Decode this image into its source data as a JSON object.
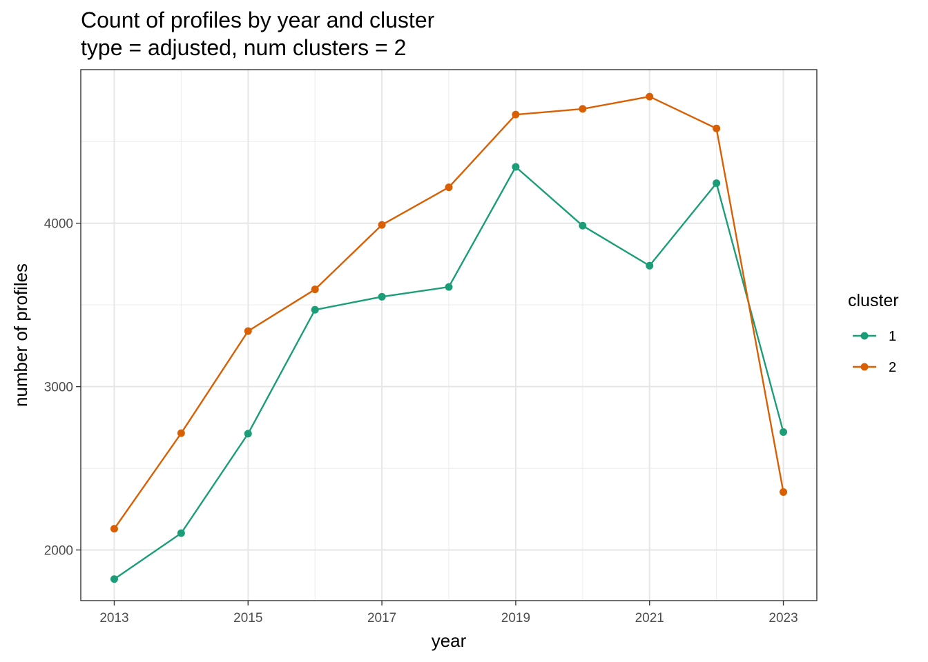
{
  "chart_data": {
    "type": "line",
    "title": "Count of profiles by year and cluster",
    "subtitle": "type = adjusted, num clusters = 2",
    "xlabel": "year",
    "ylabel": "number of profiles",
    "x": [
      2013,
      2014,
      2015,
      2016,
      2017,
      2018,
      2019,
      2020,
      2021,
      2022,
      2023
    ],
    "x_ticks": [
      "2013",
      "2015",
      "2017",
      "2019",
      "2021",
      "2023"
    ],
    "y_ticks": [
      "2000",
      "3000",
      "4000"
    ],
    "xlim": [
      2012.5,
      2023.5
    ],
    "ylim": [
      1690,
      4940
    ],
    "grid": true,
    "legend": {
      "title": "cluster",
      "position": "right"
    },
    "series": [
      {
        "name": "1",
        "color": "#1b9e77",
        "values": [
          1822,
          2103,
          2712,
          3470,
          3550,
          3610,
          4345,
          3985,
          3740,
          4245,
          2722
        ]
      },
      {
        "name": "2",
        "color": "#d95f02",
        "values": [
          2130,
          2715,
          3340,
          3595,
          3990,
          4220,
          4665,
          4700,
          4775,
          4580,
          2355
        ]
      }
    ]
  }
}
